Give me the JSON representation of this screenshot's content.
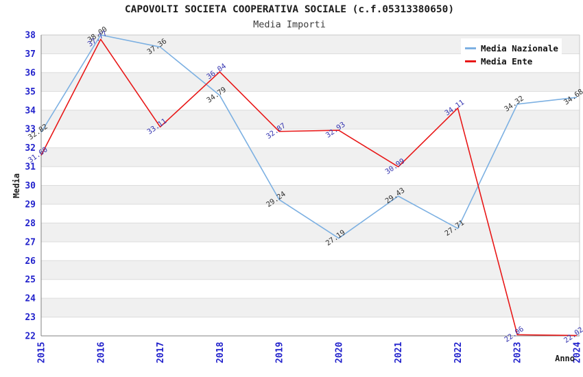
{
  "header": {
    "title": "CAPOVOLTI SOCIETA COOPERATIVA SOCIALE (c.f.05313380650)",
    "subtitle": "Media Importi"
  },
  "legend": {
    "items": [
      {
        "label": "Media Nazionale",
        "color": "#7cb0e2"
      },
      {
        "label": "Media Ente",
        "color": "#e81717"
      }
    ]
  },
  "chart_data": {
    "type": "line",
    "title": "CAPOVOLTI SOCIETA COOPERATIVA SOCIALE (c.f.05313380650)",
    "subtitle": "Media Importi",
    "xlabel": "Anno",
    "ylabel": "Media",
    "categories": [
      "2015",
      "2016",
      "2017",
      "2018",
      "2019",
      "2020",
      "2021",
      "2022",
      "2023",
      "2024"
    ],
    "series": [
      {
        "name": "Media Nazionale",
        "color": "#7cb0e2",
        "label_color": "#303030",
        "values": [
          32.82,
          38.0,
          37.36,
          34.79,
          29.24,
          27.19,
          29.43,
          27.71,
          34.32,
          34.68
        ]
      },
      {
        "name": "Media Ente",
        "color": "#e81717",
        "label_color": "#3434b0",
        "values": [
          31.6,
          37.77,
          33.11,
          36.04,
          32.87,
          32.93,
          30.99,
          34.11,
          22.06,
          22.02
        ]
      }
    ],
    "ylim": [
      22,
      38
    ],
    "ytick_step": 1,
    "grid": true,
    "legend_position": "top-right",
    "value_decimals": 2,
    "colors": {
      "tick_label": "#2222cc",
      "band_alt": "#f0f0f0",
      "band_main": "#ffffff",
      "gridline": "#dcdcdc",
      "axis_dark": "#808080",
      "axis_light": "#c8c8c8"
    }
  }
}
